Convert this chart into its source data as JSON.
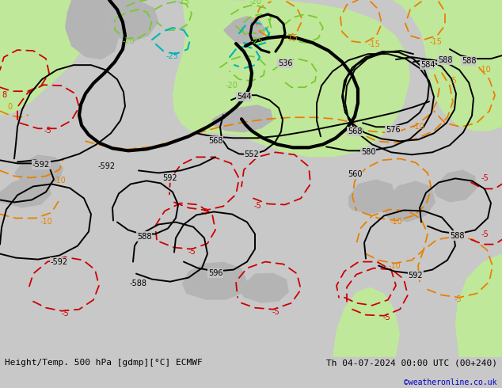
{
  "title_left": "Height/Temp. 500 hPa [gdmp][°C] ECMWF",
  "title_right": "Th 04-07-2024 00:00 UTC (00+240)",
  "copyright": "©weatheronline.co.uk",
  "bg": "#c8c8c8",
  "land_green": "#c0e89a",
  "land_gray": "#b4b4b4",
  "zc": "#000000",
  "oc": "#e88000",
  "gc": "#78c832",
  "cc": "#00b4b4",
  "rc": "#cc0000",
  "lfs": 7,
  "bfs": 8,
  "copy_color": "#0000cc"
}
